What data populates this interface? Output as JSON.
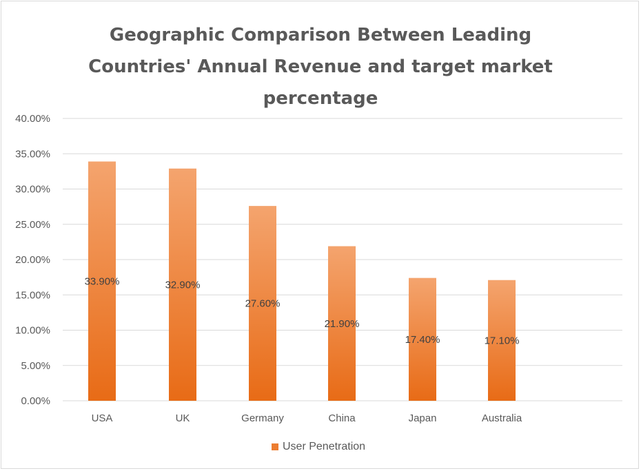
{
  "chart_data": {
    "type": "bar",
    "title_lines": [
      "Geographic Comparison Between Leading",
      "Countries' Annual Revenue and target market",
      "percentage"
    ],
    "categories": [
      "USA",
      "UK",
      "Germany",
      "China",
      "Japan",
      "Australia"
    ],
    "series": [
      {
        "name": "User Penetration",
        "values": [
          33.9,
          32.9,
          27.6,
          21.9,
          17.4,
          17.1
        ],
        "labels": [
          "33.90%",
          "32.90%",
          "27.60%",
          "21.90%",
          "17.40%",
          "17.10%"
        ],
        "color": "#ed7d31"
      }
    ],
    "ylim": [
      0,
      40
    ],
    "yticks": [
      0,
      5,
      10,
      15,
      20,
      25,
      30,
      35,
      40
    ],
    "ytick_labels": [
      "0.00%",
      "5.00%",
      "10.00%",
      "15.00%",
      "20.00%",
      "25.00%",
      "30.00%",
      "35.00%",
      "40.00%"
    ],
    "grid": true,
    "legend_position": "bottom",
    "colors": {
      "bar_top": "#f4a46e",
      "bar_bottom": "#e86b16",
      "grid": "#d9d9d9",
      "text": "#595959"
    }
  }
}
